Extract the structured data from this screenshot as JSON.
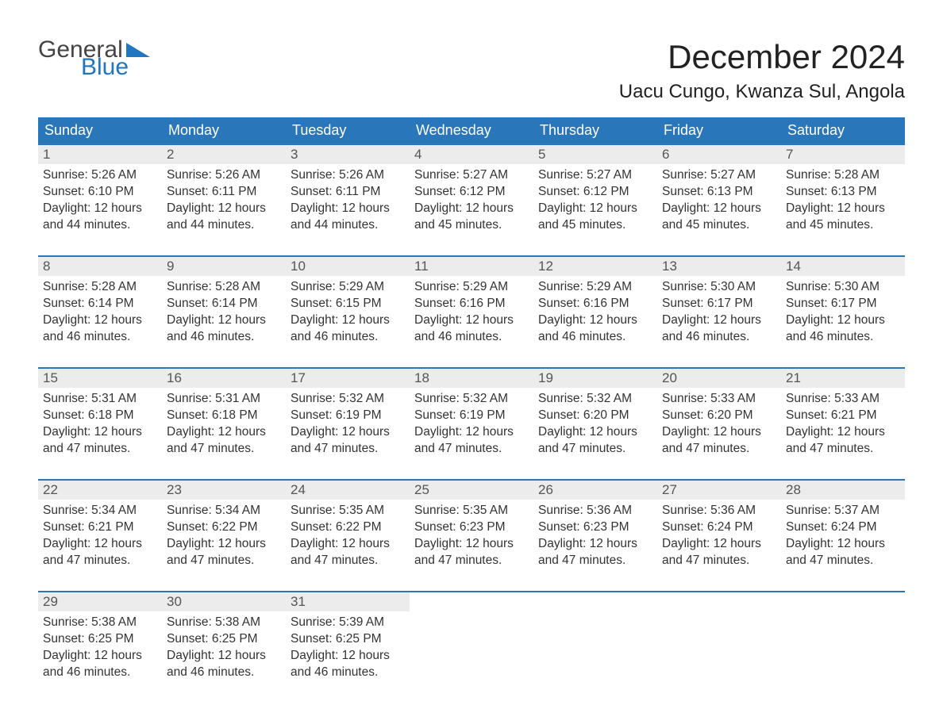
{
  "logo": {
    "text1": "General",
    "text2": "Blue",
    "text1_color": "#444444",
    "text2_color": "#2176c1",
    "triangle_color": "#2176c1"
  },
  "header": {
    "month_title": "December 2024",
    "location": "Uacu Cungo, Kwanza Sul, Angola",
    "title_fontsize": 42,
    "location_fontsize": 24,
    "title_color": "#222222"
  },
  "calendar": {
    "type": "table",
    "header_bg": "#2a76bb",
    "header_text_color": "#ffffff",
    "daynum_bg": "#ececec",
    "week_border_color": "#2a76bb",
    "cell_text_color": "#333333",
    "columns": [
      "Sunday",
      "Monday",
      "Tuesday",
      "Wednesday",
      "Thursday",
      "Friday",
      "Saturday"
    ],
    "weeks": [
      [
        {
          "num": "1",
          "sunrise": "Sunrise: 5:26 AM",
          "sunset": "Sunset: 6:10 PM",
          "dl1": "Daylight: 12 hours",
          "dl2": "and 44 minutes."
        },
        {
          "num": "2",
          "sunrise": "Sunrise: 5:26 AM",
          "sunset": "Sunset: 6:11 PM",
          "dl1": "Daylight: 12 hours",
          "dl2": "and 44 minutes."
        },
        {
          "num": "3",
          "sunrise": "Sunrise: 5:26 AM",
          "sunset": "Sunset: 6:11 PM",
          "dl1": "Daylight: 12 hours",
          "dl2": "and 44 minutes."
        },
        {
          "num": "4",
          "sunrise": "Sunrise: 5:27 AM",
          "sunset": "Sunset: 6:12 PM",
          "dl1": "Daylight: 12 hours",
          "dl2": "and 45 minutes."
        },
        {
          "num": "5",
          "sunrise": "Sunrise: 5:27 AM",
          "sunset": "Sunset: 6:12 PM",
          "dl1": "Daylight: 12 hours",
          "dl2": "and 45 minutes."
        },
        {
          "num": "6",
          "sunrise": "Sunrise: 5:27 AM",
          "sunset": "Sunset: 6:13 PM",
          "dl1": "Daylight: 12 hours",
          "dl2": "and 45 minutes."
        },
        {
          "num": "7",
          "sunrise": "Sunrise: 5:28 AM",
          "sunset": "Sunset: 6:13 PM",
          "dl1": "Daylight: 12 hours",
          "dl2": "and 45 minutes."
        }
      ],
      [
        {
          "num": "8",
          "sunrise": "Sunrise: 5:28 AM",
          "sunset": "Sunset: 6:14 PM",
          "dl1": "Daylight: 12 hours",
          "dl2": "and 46 minutes."
        },
        {
          "num": "9",
          "sunrise": "Sunrise: 5:28 AM",
          "sunset": "Sunset: 6:14 PM",
          "dl1": "Daylight: 12 hours",
          "dl2": "and 46 minutes."
        },
        {
          "num": "10",
          "sunrise": "Sunrise: 5:29 AM",
          "sunset": "Sunset: 6:15 PM",
          "dl1": "Daylight: 12 hours",
          "dl2": "and 46 minutes."
        },
        {
          "num": "11",
          "sunrise": "Sunrise: 5:29 AM",
          "sunset": "Sunset: 6:16 PM",
          "dl1": "Daylight: 12 hours",
          "dl2": "and 46 minutes."
        },
        {
          "num": "12",
          "sunrise": "Sunrise: 5:29 AM",
          "sunset": "Sunset: 6:16 PM",
          "dl1": "Daylight: 12 hours",
          "dl2": "and 46 minutes."
        },
        {
          "num": "13",
          "sunrise": "Sunrise: 5:30 AM",
          "sunset": "Sunset: 6:17 PM",
          "dl1": "Daylight: 12 hours",
          "dl2": "and 46 minutes."
        },
        {
          "num": "14",
          "sunrise": "Sunrise: 5:30 AM",
          "sunset": "Sunset: 6:17 PM",
          "dl1": "Daylight: 12 hours",
          "dl2": "and 46 minutes."
        }
      ],
      [
        {
          "num": "15",
          "sunrise": "Sunrise: 5:31 AM",
          "sunset": "Sunset: 6:18 PM",
          "dl1": "Daylight: 12 hours",
          "dl2": "and 47 minutes."
        },
        {
          "num": "16",
          "sunrise": "Sunrise: 5:31 AM",
          "sunset": "Sunset: 6:18 PM",
          "dl1": "Daylight: 12 hours",
          "dl2": "and 47 minutes."
        },
        {
          "num": "17",
          "sunrise": "Sunrise: 5:32 AM",
          "sunset": "Sunset: 6:19 PM",
          "dl1": "Daylight: 12 hours",
          "dl2": "and 47 minutes."
        },
        {
          "num": "18",
          "sunrise": "Sunrise: 5:32 AM",
          "sunset": "Sunset: 6:19 PM",
          "dl1": "Daylight: 12 hours",
          "dl2": "and 47 minutes."
        },
        {
          "num": "19",
          "sunrise": "Sunrise: 5:32 AM",
          "sunset": "Sunset: 6:20 PM",
          "dl1": "Daylight: 12 hours",
          "dl2": "and 47 minutes."
        },
        {
          "num": "20",
          "sunrise": "Sunrise: 5:33 AM",
          "sunset": "Sunset: 6:20 PM",
          "dl1": "Daylight: 12 hours",
          "dl2": "and 47 minutes."
        },
        {
          "num": "21",
          "sunrise": "Sunrise: 5:33 AM",
          "sunset": "Sunset: 6:21 PM",
          "dl1": "Daylight: 12 hours",
          "dl2": "and 47 minutes."
        }
      ],
      [
        {
          "num": "22",
          "sunrise": "Sunrise: 5:34 AM",
          "sunset": "Sunset: 6:21 PM",
          "dl1": "Daylight: 12 hours",
          "dl2": "and 47 minutes."
        },
        {
          "num": "23",
          "sunrise": "Sunrise: 5:34 AM",
          "sunset": "Sunset: 6:22 PM",
          "dl1": "Daylight: 12 hours",
          "dl2": "and 47 minutes."
        },
        {
          "num": "24",
          "sunrise": "Sunrise: 5:35 AM",
          "sunset": "Sunset: 6:22 PM",
          "dl1": "Daylight: 12 hours",
          "dl2": "and 47 minutes."
        },
        {
          "num": "25",
          "sunrise": "Sunrise: 5:35 AM",
          "sunset": "Sunset: 6:23 PM",
          "dl1": "Daylight: 12 hours",
          "dl2": "and 47 minutes."
        },
        {
          "num": "26",
          "sunrise": "Sunrise: 5:36 AM",
          "sunset": "Sunset: 6:23 PM",
          "dl1": "Daylight: 12 hours",
          "dl2": "and 47 minutes."
        },
        {
          "num": "27",
          "sunrise": "Sunrise: 5:36 AM",
          "sunset": "Sunset: 6:24 PM",
          "dl1": "Daylight: 12 hours",
          "dl2": "and 47 minutes."
        },
        {
          "num": "28",
          "sunrise": "Sunrise: 5:37 AM",
          "sunset": "Sunset: 6:24 PM",
          "dl1": "Daylight: 12 hours",
          "dl2": "and 47 minutes."
        }
      ],
      [
        {
          "num": "29",
          "sunrise": "Sunrise: 5:38 AM",
          "sunset": "Sunset: 6:25 PM",
          "dl1": "Daylight: 12 hours",
          "dl2": "and 46 minutes."
        },
        {
          "num": "30",
          "sunrise": "Sunrise: 5:38 AM",
          "sunset": "Sunset: 6:25 PM",
          "dl1": "Daylight: 12 hours",
          "dl2": "and 46 minutes."
        },
        {
          "num": "31",
          "sunrise": "Sunrise: 5:39 AM",
          "sunset": "Sunset: 6:25 PM",
          "dl1": "Daylight: 12 hours",
          "dl2": "and 46 minutes."
        },
        null,
        null,
        null,
        null
      ]
    ]
  }
}
